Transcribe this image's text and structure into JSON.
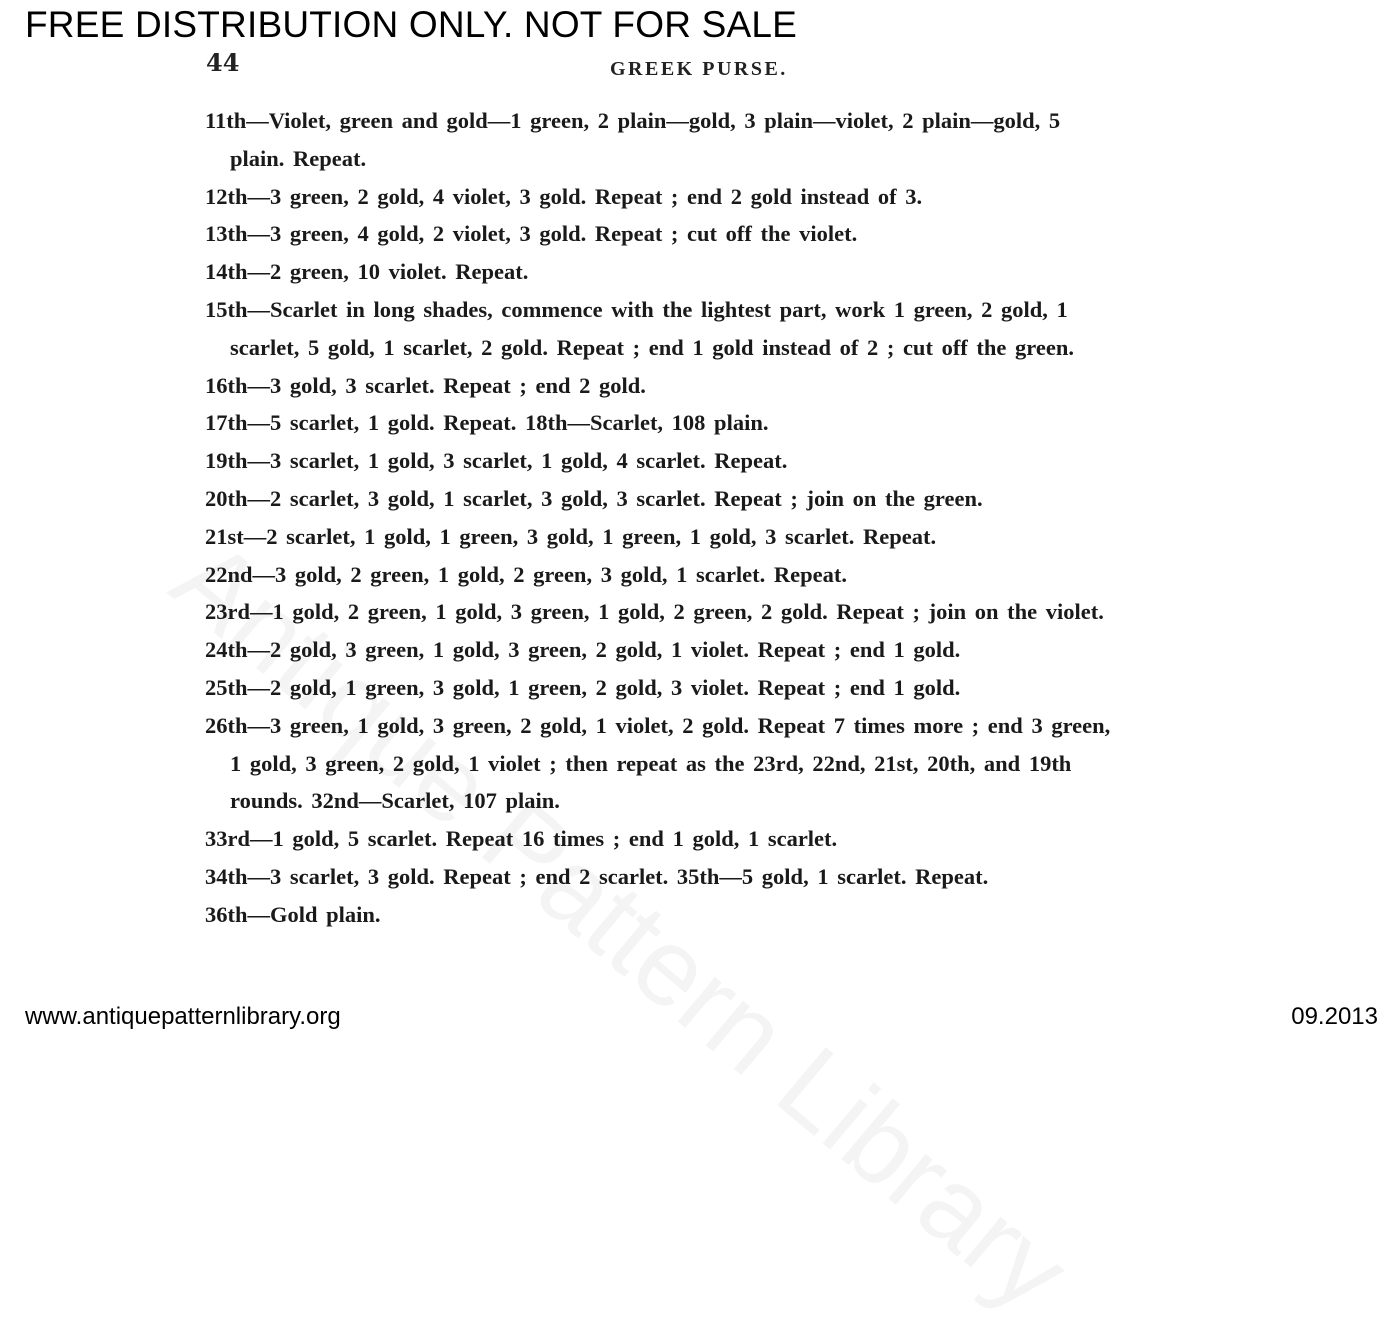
{
  "banner": "FREE DISTRIBUTION ONLY.  NOT FOR SALE",
  "page_number": "44",
  "running_head": "GREEK PURSE.",
  "watermark": "Antique Pattern Library",
  "lines": [
    {
      "text": "11th—Violet, green and gold—1 green, 2 plain—gold, 3 plain—violet, 2 plain—gold, 5",
      "indent": false
    },
    {
      "text": "plain.  Repeat.",
      "indent": true
    },
    {
      "text": "12th—3 green, 2 gold, 4 violet, 3 gold.   Repeat ; end 2 gold instead of 3.",
      "indent": false
    },
    {
      "text": "13th—3 green, 4 gold, 2 violet, 3 gold.   Repeat ; cut off the violet.",
      "indent": false
    },
    {
      "text": "14th—2 green, 10 violet.   Repeat.",
      "indent": false
    },
    {
      "text": "15th—Scarlet in long shades, commence with the lightest part, work 1 green, 2 gold, 1",
      "indent": false
    },
    {
      "text": "scarlet, 5 gold, 1 scarlet, 2 gold.   Repeat ; end 1 gold instead of 2 ; cut off the green.",
      "indent": true
    },
    {
      "text": "16th—3 gold, 3 scarlet.   Repeat ; end 2 gold.",
      "indent": false
    },
    {
      "text": "17th—5 scarlet, 1 gold.   Repeat.   18th—Scarlet, 108 plain.",
      "indent": false
    },
    {
      "text": "19th—3 scarlet, 1 gold, 3 scarlet, 1 gold, 4 scarlet.   Repeat.",
      "indent": false
    },
    {
      "text": "20th—2 scarlet, 3 gold, 1 scarlet, 3 gold, 3 scarlet.   Repeat ; join on the green.",
      "indent": false
    },
    {
      "text": "21st—2 scarlet, 1 gold, 1 green, 3 gold, 1 green, 1 gold, 3 scarlet.   Repeat.",
      "indent": false
    },
    {
      "text": "22nd—3 gold, 2 green, 1 gold, 2 green, 3 gold, 1 scarlet.   Repeat.",
      "indent": false
    },
    {
      "text": "23rd—1 gold, 2 green, 1 gold, 3 green, 1 gold, 2 green, 2 gold.   Repeat ; join on the violet.",
      "indent": false
    },
    {
      "text": "24th—2 gold, 3 green, 1 gold, 3 green, 2 gold, 1 violet.   Repeat ; end 1 gold.",
      "indent": false
    },
    {
      "text": "25th—2 gold, 1 green, 3 gold, 1 green, 2 gold, 3 violet.   Repeat ; end 1 gold.",
      "indent": false
    },
    {
      "text": "26th—3 green, 1 gold, 3 green, 2 gold, 1 violet, 2 gold.   Repeat 7 times more ; end 3 green,",
      "indent": false
    },
    {
      "text": "1 gold, 3 green, 2 gold, 1 violet ; then repeat as the 23rd, 22nd, 21st, 20th, and 19th",
      "indent": true
    },
    {
      "text": "rounds.   32nd—Scarlet, 107 plain.",
      "indent": true
    },
    {
      "text": "33rd—1 gold, 5 scarlet.   Repeat 16 times ; end 1 gold, 1 scarlet.",
      "indent": false
    },
    {
      "text": "34th—3 scarlet, 3 gold.   Repeat ; end 2 scarlet.   35th—5 gold, 1 scarlet.   Repeat.",
      "indent": false
    },
    {
      "text": "36th—Gold plain.",
      "indent": false
    }
  ],
  "footer": {
    "website": "www.antiquepatternlibrary.org",
    "date": "09.2013"
  }
}
